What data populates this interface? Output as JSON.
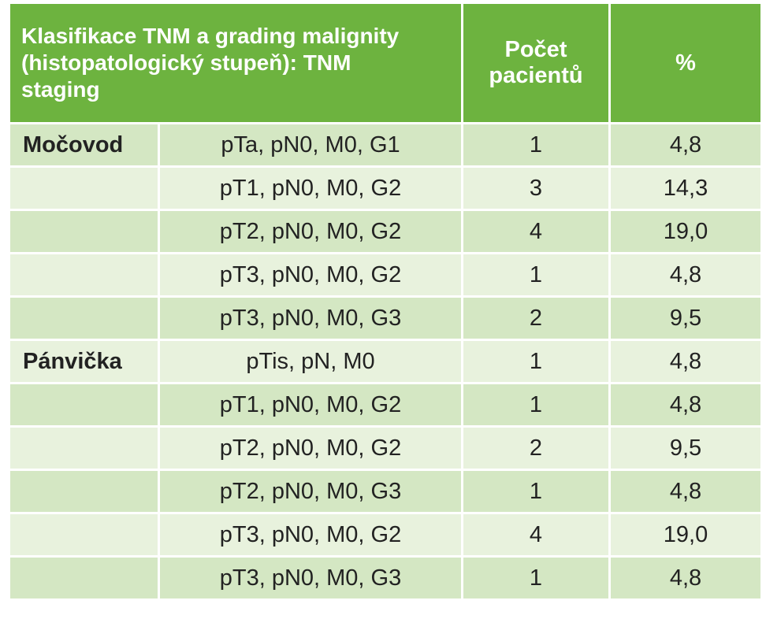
{
  "table": {
    "header": {
      "title": "Klasifikace TNM a grading malignity (histopatologický stupeň): TNM staging",
      "count": "Počet pacientů",
      "percent": "%"
    },
    "groups": [
      {
        "name": "Močovod",
        "rows": [
          [
            "pTa, pN0, M0, G1",
            "1",
            "4,8"
          ],
          [
            "pT1, pN0, M0, G2",
            "3",
            "14,3"
          ],
          [
            "pT2, pN0, M0, G2",
            "4",
            "19,0"
          ],
          [
            "pT3, pN0, M0, G2",
            "1",
            "4,8"
          ],
          [
            "pT3, pN0, M0, G3",
            "2",
            "9,5"
          ]
        ]
      },
      {
        "name": "Pánvička",
        "rows": [
          [
            "pTis, pN, M0",
            "1",
            "4,8"
          ],
          [
            "pT1, pN0, M0, G2",
            "1",
            "4,8"
          ],
          [
            "pT2, pN0, M0, G2",
            "2",
            "9,5"
          ],
          [
            "pT2, pN0, M0, G3",
            "1",
            "4,8"
          ],
          [
            "pT3, pN0, M0, G2",
            "4",
            "19,0"
          ],
          [
            "pT3, pN0, M0, G3",
            "1",
            "4,8"
          ]
        ]
      }
    ]
  }
}
